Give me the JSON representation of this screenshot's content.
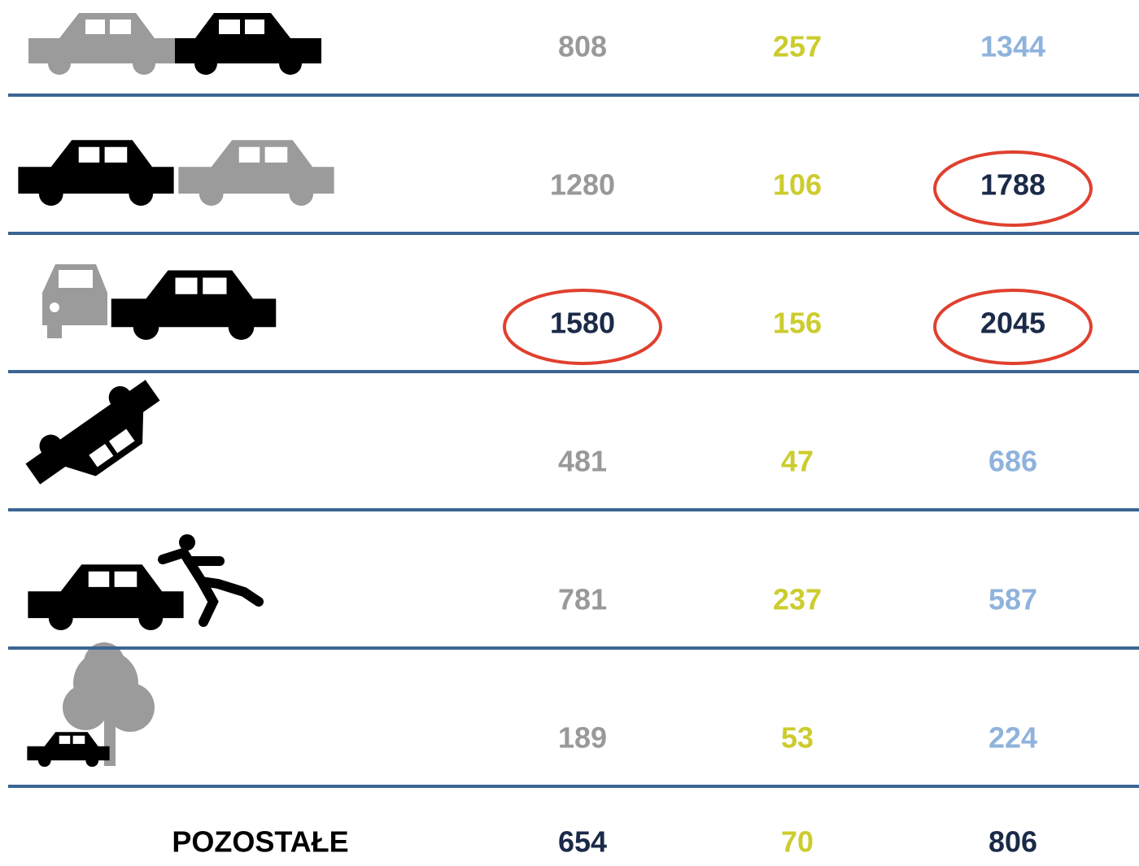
{
  "table": {
    "column_colors": [
      "#999999",
      "#cccc2e",
      "#8fb3dc"
    ],
    "highlight_color": "#1b2a48",
    "circle_color": "#e0402f",
    "line_color": "#3b6593",
    "rows": [
      {
        "values": [
          808,
          257,
          1344
        ],
        "circled": [
          false,
          false,
          false
        ]
      },
      {
        "values": [
          1280,
          106,
          1788
        ],
        "circled": [
          false,
          false,
          true
        ]
      },
      {
        "values": [
          1580,
          156,
          2045
        ],
        "circled": [
          true,
          false,
          true
        ]
      },
      {
        "values": [
          481,
          47,
          686
        ],
        "circled": [
          false,
          false,
          false
        ]
      },
      {
        "values": [
          781,
          237,
          587
        ],
        "circled": [
          false,
          false,
          false
        ]
      },
      {
        "values": [
          189,
          53,
          224
        ],
        "circled": [
          false,
          false,
          false
        ]
      }
    ],
    "summary": {
      "label": "POZOSTAŁE",
      "values": [
        654,
        70,
        806
      ],
      "colors": [
        "#1b2a48",
        "#cccc2e",
        "#1b2a48"
      ]
    }
  }
}
